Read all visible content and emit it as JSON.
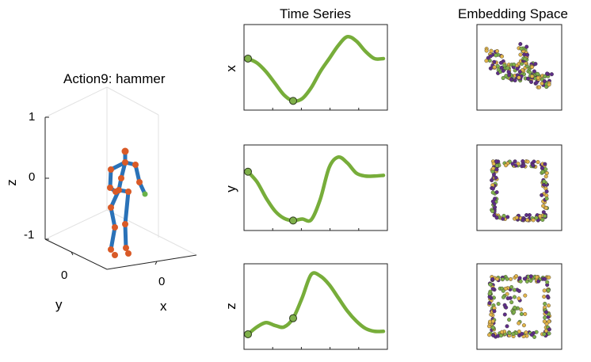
{
  "skeleton": {
    "title": "Action9: hammer",
    "z_label": "z",
    "y_label": "y",
    "x_label": "x",
    "z_ticks": [
      "1",
      "0",
      "-1"
    ],
    "y_ticks": [
      "0"
    ],
    "x_ticks": [
      "0"
    ],
    "colors": {
      "bone": "#2a72b8",
      "joint": "#d95a27",
      "hand": "#6ab34a"
    }
  },
  "time_series": {
    "title": "Time Series",
    "color": "#77ad3a",
    "panels": [
      {
        "ylabel": "x",
        "values": [
          0.62,
          0.56,
          0.44,
          0.28,
          0.12,
          0.04,
          0.07,
          0.22,
          0.44,
          0.62,
          0.8,
          0.92,
          0.86,
          0.72,
          0.62,
          0.62
        ],
        "markers": [
          0,
          5
        ]
      },
      {
        "ylabel": "y",
        "values": [
          0.72,
          0.58,
          0.36,
          0.18,
          0.08,
          0.05,
          0.07,
          0.06,
          0.34,
          0.78,
          0.92,
          0.84,
          0.7,
          0.66,
          0.66,
          0.67
        ],
        "markers": [
          0,
          5
        ]
      },
      {
        "ylabel": "z",
        "values": [
          0.12,
          0.22,
          0.28,
          0.24,
          0.22,
          0.34,
          0.62,
          0.94,
          0.92,
          0.8,
          0.62,
          0.44,
          0.3,
          0.2,
          0.16,
          0.16
        ],
        "markers": [
          0,
          5
        ]
      }
    ]
  },
  "embedding": {
    "title": "Embedding Space",
    "point_colors": [
      "#5e2d87",
      "#7fb04a",
      "#e1b44a"
    ]
  }
}
